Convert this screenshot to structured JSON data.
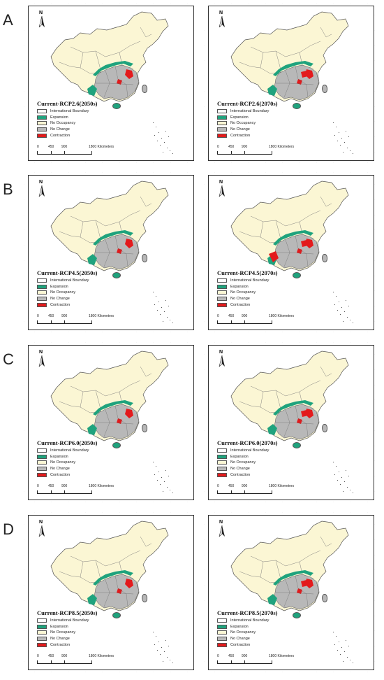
{
  "rows": [
    {
      "letter": "A",
      "panels": [
        {
          "title": "Current-RCP2.6(2050s)",
          "scenario": "RCP2.6",
          "period": "2050s"
        },
        {
          "title": "Current-RCP2.6(2070s)",
          "scenario": "RCP2.6",
          "period": "2070s"
        }
      ]
    },
    {
      "letter": "B",
      "panels": [
        {
          "title": "Current-RCP4.5(2050s)",
          "scenario": "RCP4.5",
          "period": "2050s"
        },
        {
          "title": "Current-RCP4.5(2070s)",
          "scenario": "RCP4.5",
          "period": "2070s"
        }
      ]
    },
    {
      "letter": "C",
      "panels": [
        {
          "title": "Current-RCP6.0(2050s)",
          "scenario": "RCP6.0",
          "period": "2050s"
        },
        {
          "title": "Current-RCP6.0(2070s)",
          "scenario": "RCP6.0",
          "period": "2070s"
        }
      ]
    },
    {
      "letter": "D",
      "panels": [
        {
          "title": "Current-RCP8.5(2050s)",
          "scenario": "RCP8.5",
          "period": "2050s"
        },
        {
          "title": "Current-RCP8.5(2070s)",
          "scenario": "RCP8.5",
          "period": "2070s"
        }
      ]
    }
  ],
  "legend": [
    {
      "label": "International Boundary",
      "color": "#ffffff"
    },
    {
      "label": "Expansion",
      "color": "#1fa37d"
    },
    {
      "label": "No Occupancy",
      "color": "#fbf6d4"
    },
    {
      "label": "No Change",
      "color": "#b8b8b8"
    },
    {
      "label": "Contraction",
      "color": "#e31a1c"
    }
  ],
  "scale": {
    "labels": [
      "0",
      "450",
      "900",
      "1800 Kilometers"
    ]
  },
  "north_label": "N",
  "colors": {
    "land": "#fbf6d4",
    "no_change": "#b8b8b8",
    "expansion": "#1fa37d",
    "contraction": "#e31a1c",
    "border": "#555555"
  }
}
